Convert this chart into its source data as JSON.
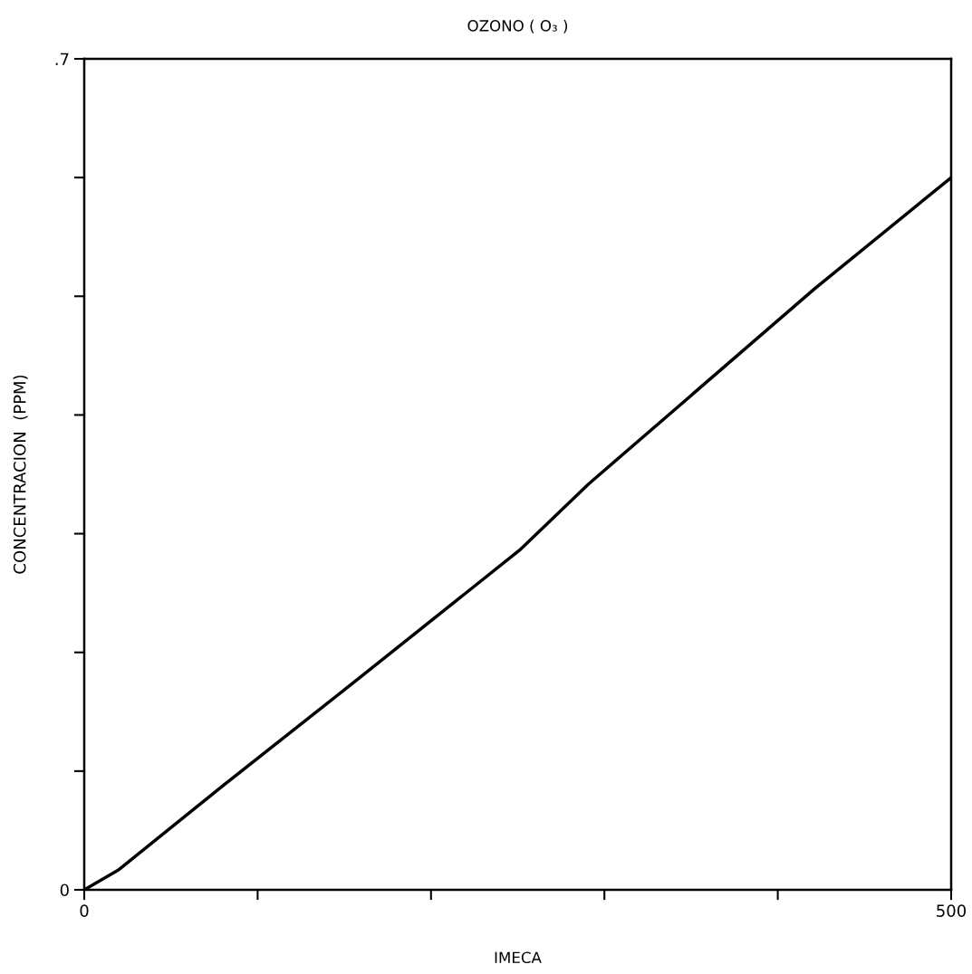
{
  "chart_data": {
    "type": "line",
    "title": "OZONO ( O₃ )",
    "xlabel": "IMECA",
    "ylabel": "CONCENTRACION  (PPM)",
    "x": [
      0,
      20,
      82,
      160,
      251,
      291,
      421,
      500
    ],
    "series": [
      {
        "color": "#000000",
        "values": [
          0,
          0.017,
          0.09,
          0.18,
          0.286,
          0.342,
          0.506,
          0.6
        ]
      }
    ],
    "xlim": [
      0,
      500
    ],
    "ylim": [
      0,
      0.7
    ],
    "xticks": [
      0,
      {
        "value": 100,
        "label": null
      },
      {
        "value": 200,
        "label": null
      },
      {
        "value": 300,
        "label": null
      },
      {
        "value": 400,
        "label": null
      },
      500
    ],
    "yticks": [
      0,
      {
        "value": 0.1,
        "label": null
      },
      {
        "value": 0.2,
        "label": null
      },
      {
        "value": 0.3,
        "label": null
      },
      {
        "value": 0.4,
        "label": null
      },
      {
        "value": 0.5,
        "label": null
      },
      {
        "value": 0.6,
        "label": null
      },
      {
        "value": 0.7,
        "label": ".7"
      }
    ],
    "grid": false,
    "legend": false,
    "marker": "none",
    "line_style": "solid"
  }
}
